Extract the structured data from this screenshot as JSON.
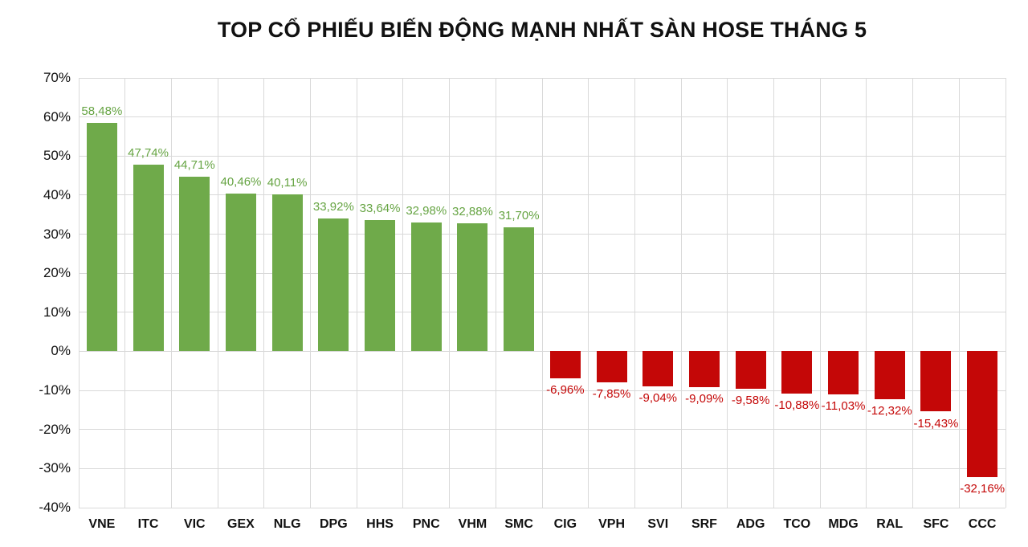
{
  "title": "TOP CỔ PHIẾU BIẾN ĐỘNG MẠNH NHẤT SÀN HOSE THÁNG 5",
  "chart_data": {
    "type": "bar",
    "title": "TOP CỔ PHIẾU BIẾN ĐỘNG MẠNH NHẤT SÀN HOSE THÁNG 5",
    "categories": [
      "VNE",
      "ITC",
      "VIC",
      "GEX",
      "NLG",
      "DPG",
      "HHS",
      "PNC",
      "VHM",
      "SMC",
      "CIG",
      "VPH",
      "SVI",
      "SRF",
      "ADG",
      "TCO",
      "MDG",
      "RAL",
      "SFC",
      "CCC"
    ],
    "values": [
      58.48,
      47.74,
      44.71,
      40.46,
      40.11,
      33.92,
      33.64,
      32.98,
      32.88,
      31.7,
      -6.96,
      -7.85,
      -9.04,
      -9.09,
      -9.58,
      -10.88,
      -11.03,
      -12.32,
      -15.43,
      -32.16
    ],
    "value_labels": [
      "58,48%",
      "47,74%",
      "44,71%",
      "40,46%",
      "40,11%",
      "33,92%",
      "33,64%",
      "32,98%",
      "32,88%",
      "31,70%",
      "-6,96%",
      "-7,85%",
      "-9,04%",
      "-9,09%",
      "-9,58%",
      "-10,88%",
      "-11,03%",
      "-12,32%",
      "-15,43%",
      "-32,16%"
    ],
    "ylim": [
      -40,
      70
    ],
    "ytick_step": 10,
    "ytick_labels": [
      "70%",
      "60%",
      "50%",
      "40%",
      "30%",
      "20%",
      "10%",
      "0%",
      "-10%",
      "-20%",
      "-30%",
      "-40%"
    ],
    "grid": "on",
    "legend": "none",
    "xlabel": "",
    "ylabel": "",
    "colors": {
      "positive_bar": "#6FAA4A",
      "negative_bar": "#C40707",
      "positive_label": "#66A443",
      "negative_label": "#C40707",
      "gridline": "#D9D9D9",
      "text": "#111111"
    }
  }
}
